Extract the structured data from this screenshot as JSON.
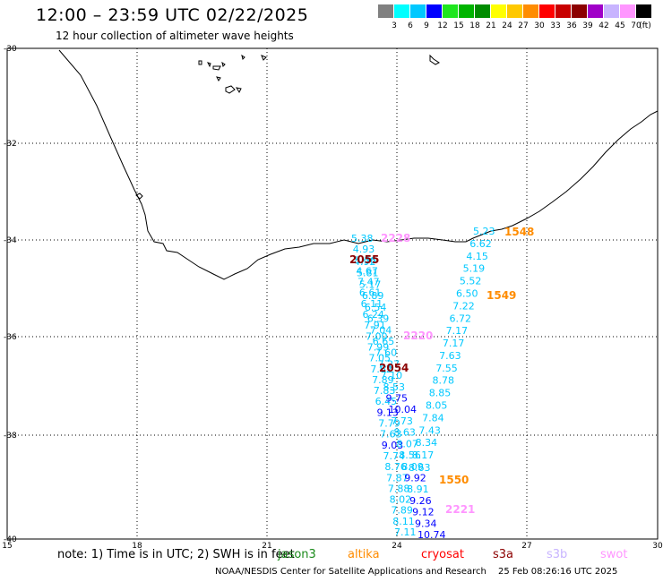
{
  "title": "12:00 – 23:59 UTC 02/22/2025",
  "subtitle": "12 hour collection of altimeter wave heights",
  "scale": {
    "colors": [
      "#808080",
      "#00ffff",
      "#00c8ff",
      "#0000ff",
      "#1ee61e",
      "#00b400",
      "#008c00",
      "#ffff00",
      "#ffc800",
      "#ff8c00",
      "#ff0000",
      "#c80000",
      "#8c0000",
      "#a000c8",
      "#c8b4ff",
      "#ff96ff",
      "#000000"
    ],
    "labels": [
      "3",
      "6",
      "9",
      "12",
      "15",
      "18",
      "21",
      "24",
      "27",
      "30",
      "33",
      "36",
      "39",
      "42",
      "45",
      "70",
      "(ft)"
    ]
  },
  "lat_labels": [
    "-30",
    "-32",
    "-34",
    "-36",
    "-38",
    "-40"
  ],
  "lon_labels": [
    "15",
    "18",
    "21",
    "24",
    "27",
    "30"
  ],
  "note": "note:  1) Time is in UTC; 2) SWH is in feet",
  "satellites": [
    {
      "name": "jason3",
      "color": "#1a8a1a"
    },
    {
      "name": "altika",
      "color": "#ff8c00"
    },
    {
      "name": "cryosat",
      "color": "#ff0000"
    },
    {
      "name": "s3a",
      "color": "#8c0000"
    },
    {
      "name": "s3b",
      "color": "#c8b4ff"
    },
    {
      "name": "swot",
      "color": "#ff96ff"
    }
  ],
  "footer_left": "NOAA/NESDIS Center for Satellite Applications and Research",
  "footer_right": "25 Feb 08:26:16 UTC 2025",
  "cycle_labels": [
    {
      "text": "2228",
      "color": "#ff96ff"
    },
    {
      "text": "1548",
      "color": "#ff8c00"
    },
    {
      "text": "2055",
      "color": "#8c0000"
    },
    {
      "text": "1549",
      "color": "#ff8c00"
    },
    {
      "text": "2220",
      "color": "#ff96ff"
    },
    {
      "text": "2054",
      "color": "#8c0000"
    },
    {
      "text": "1550",
      "color": "#ff8c00"
    },
    {
      "text": "2221",
      "color": "#ff96ff"
    }
  ],
  "track_west": [
    {
      "v": "5.38",
      "c": "#00c8ff"
    },
    {
      "v": "4.93",
      "c": "#00c8ff"
    },
    {
      "v": "5.36",
      "c": "#00c8ff"
    },
    {
      "v": "4.67",
      "c": "#00c8ff"
    },
    {
      "v": "7.47",
      "c": "#00c8ff"
    },
    {
      "v": "6.61",
      "c": "#00c8ff"
    },
    {
      "v": "6.11",
      "c": "#00c8ff"
    },
    {
      "v": "6.24",
      "c": "#00c8ff"
    },
    {
      "v": "7.91",
      "c": "#00c8ff"
    },
    {
      "v": "7.00",
      "c": "#00c8ff"
    },
    {
      "v": "7.99",
      "c": "#00c8ff"
    },
    {
      "v": "7.05",
      "c": "#00c8ff"
    },
    {
      "v": "7.62",
      "c": "#00c8ff"
    },
    {
      "v": "7.89",
      "c": "#00c8ff"
    },
    {
      "v": "7.83",
      "c": "#00c8ff"
    },
    {
      "v": "6.45",
      "c": "#00c8ff"
    },
    {
      "v": "9.13",
      "c": "#0000ff"
    },
    {
      "v": "7.79",
      "c": "#00c8ff"
    },
    {
      "v": "7.63",
      "c": "#00c8ff"
    },
    {
      "v": "9.03",
      "c": "#0000ff"
    },
    {
      "v": "7.74",
      "c": "#00c8ff"
    },
    {
      "v": "8.76",
      "c": "#00c8ff"
    },
    {
      "v": "7.87",
      "c": "#00c8ff"
    },
    {
      "v": "7.88",
      "c": "#00c8ff"
    },
    {
      "v": "8.02",
      "c": "#00c8ff"
    },
    {
      "v": "7.89",
      "c": "#00c8ff"
    },
    {
      "v": "8.11",
      "c": "#00c8ff"
    },
    {
      "v": "7.11",
      "c": "#00c8ff"
    }
  ],
  "track_mid": [
    {
      "v": "4.92",
      "c": "#00c8ff"
    },
    {
      "v": "5.81",
      "c": "#00c8ff"
    },
    {
      "v": "5.17",
      "c": "#00c8ff"
    },
    {
      "v": "6.89",
      "c": "#00c8ff"
    },
    {
      "v": "6.54",
      "c": "#00c8ff"
    },
    {
      "v": "6.39",
      "c": "#00c8ff"
    },
    {
      "v": "7.04",
      "c": "#00c8ff"
    },
    {
      "v": "6.65",
      "c": "#00c8ff"
    },
    {
      "v": "7.60",
      "c": "#00c8ff"
    },
    {
      "v": "7.27",
      "c": "#00c8ff"
    },
    {
      "v": "7.10",
      "c": "#00c8ff"
    },
    {
      "v": "8.53",
      "c": "#00c8ff"
    },
    {
      "v": "9.75",
      "c": "#0000ff"
    },
    {
      "v": "10.04",
      "c": "#0000ff"
    },
    {
      "v": "7.73",
      "c": "#00c8ff"
    },
    {
      "v": "8.63",
      "c": "#00c8ff"
    },
    {
      "v": "8.07",
      "c": "#00c8ff"
    },
    {
      "v": "8.56",
      "c": "#00c8ff"
    },
    {
      "v": "8.09",
      "c": "#00c8ff"
    },
    {
      "v": "9.92",
      "c": "#0000ff"
    },
    {
      "v": "8.91",
      "c": "#00c8ff"
    },
    {
      "v": "9.26",
      "c": "#0000ff"
    },
    {
      "v": "9.12",
      "c": "#0000ff"
    },
    {
      "v": "9.34",
      "c": "#0000ff"
    },
    {
      "v": "10.74",
      "c": "#0000ff"
    }
  ],
  "track_east": [
    {
      "v": "5.23",
      "c": "#00c8ff"
    },
    {
      "v": "6.62",
      "c": "#00c8ff"
    },
    {
      "v": "4.15",
      "c": "#00c8ff"
    },
    {
      "v": "5.19",
      "c": "#00c8ff"
    },
    {
      "v": "5.52",
      "c": "#00c8ff"
    },
    {
      "v": "6.50",
      "c": "#00c8ff"
    },
    {
      "v": "7.22",
      "c": "#00c8ff"
    },
    {
      "v": "6.72",
      "c": "#00c8ff"
    },
    {
      "v": "7.17",
      "c": "#00c8ff"
    },
    {
      "v": "7.17",
      "c": "#00c8ff"
    },
    {
      "v": "7.63",
      "c": "#00c8ff"
    },
    {
      "v": "7.55",
      "c": "#00c8ff"
    },
    {
      "v": "8.78",
      "c": "#00c8ff"
    },
    {
      "v": "8.85",
      "c": "#00c8ff"
    },
    {
      "v": "8.05",
      "c": "#00c8ff"
    },
    {
      "v": "7.84",
      "c": "#00c8ff"
    },
    {
      "v": "7.43",
      "c": "#00c8ff"
    },
    {
      "v": "8.34",
      "c": "#00c8ff"
    },
    {
      "v": "8.17",
      "c": "#00c8ff"
    },
    {
      "v": "8.63",
      "c": "#00c8ff"
    }
  ]
}
